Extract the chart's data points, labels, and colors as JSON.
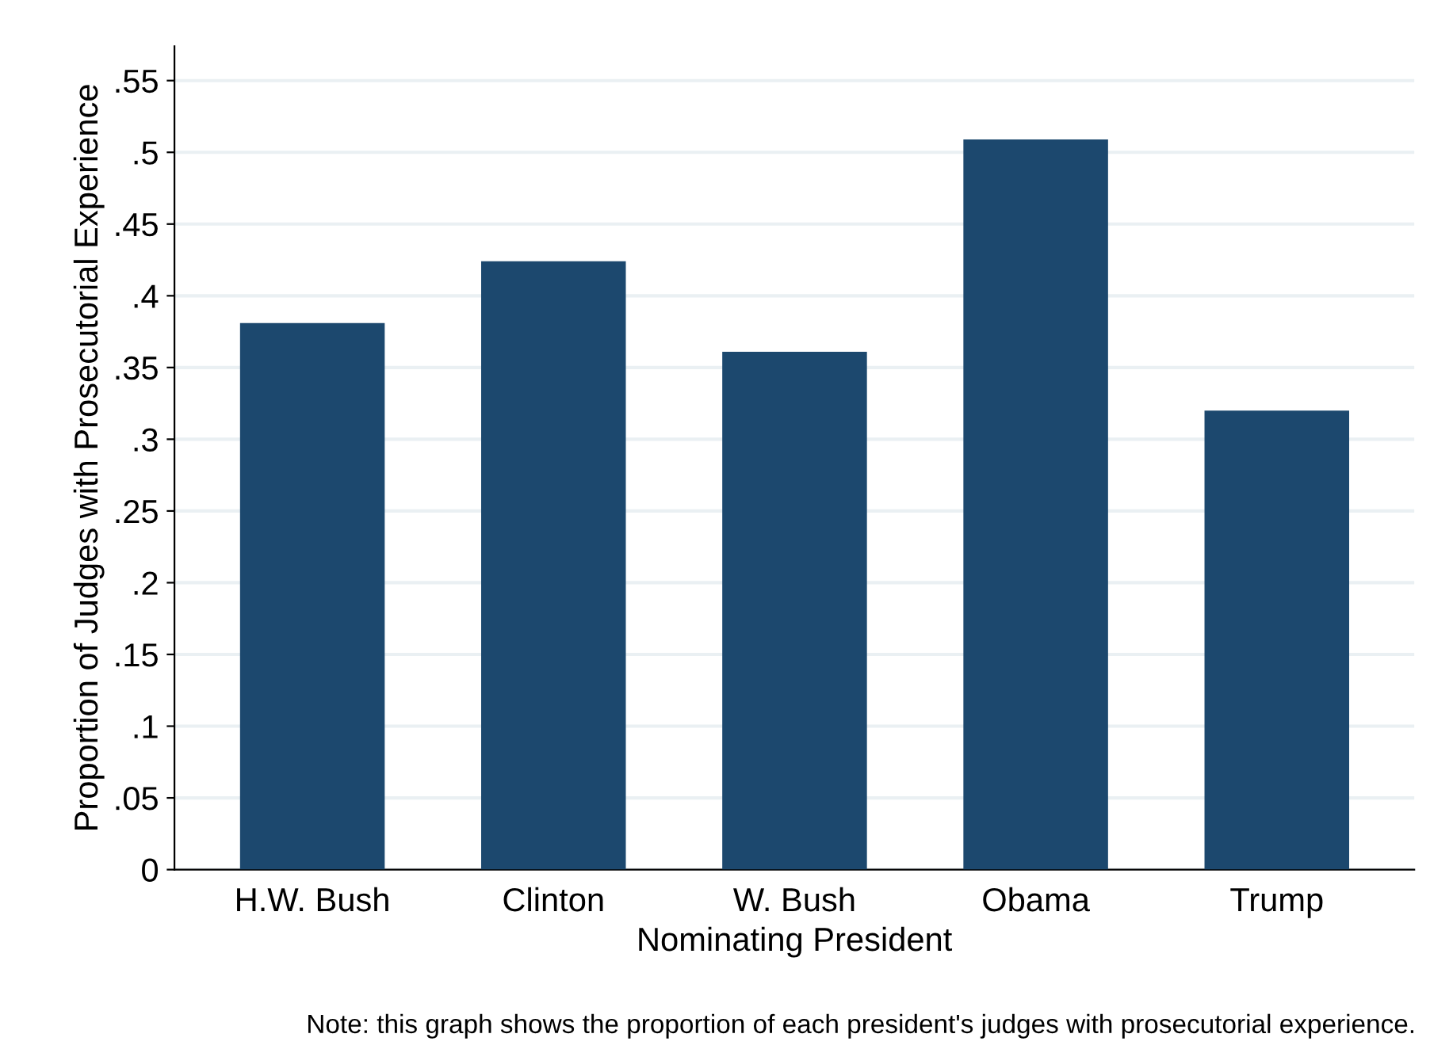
{
  "chart_data": {
    "type": "bar",
    "xlabel": "Nominating President",
    "ylabel": "Proportion of Judges with Prosecutorial Experience",
    "categories": [
      "H.W. Bush",
      "Clinton",
      "W. Bush",
      "Obama",
      "Trump"
    ],
    "values": [
      0.381,
      0.424,
      0.361,
      0.509,
      0.32
    ],
    "color": "#1c486e",
    "ylim": [
      0,
      0.574
    ],
    "yticks": [
      {
        "value": 0,
        "label": "0"
      },
      {
        "value": 0.05,
        "label": ".05"
      },
      {
        "value": 0.1,
        "label": ".1"
      },
      {
        "value": 0.15,
        "label": ".15"
      },
      {
        "value": 0.2,
        "label": ".2"
      },
      {
        "value": 0.25,
        "label": ".25"
      },
      {
        "value": 0.3,
        "label": ".3"
      },
      {
        "value": 0.35,
        "label": ".35"
      },
      {
        "value": 0.4,
        "label": ".4"
      },
      {
        "value": 0.45,
        "label": ".45"
      },
      {
        "value": 0.5,
        "label": ".5"
      },
      {
        "value": 0.55,
        "label": ".55"
      }
    ],
    "grid": "y",
    "annotations": [
      "Note: this graph shows the proportion of each president's judges with prosecutorial experience."
    ]
  }
}
